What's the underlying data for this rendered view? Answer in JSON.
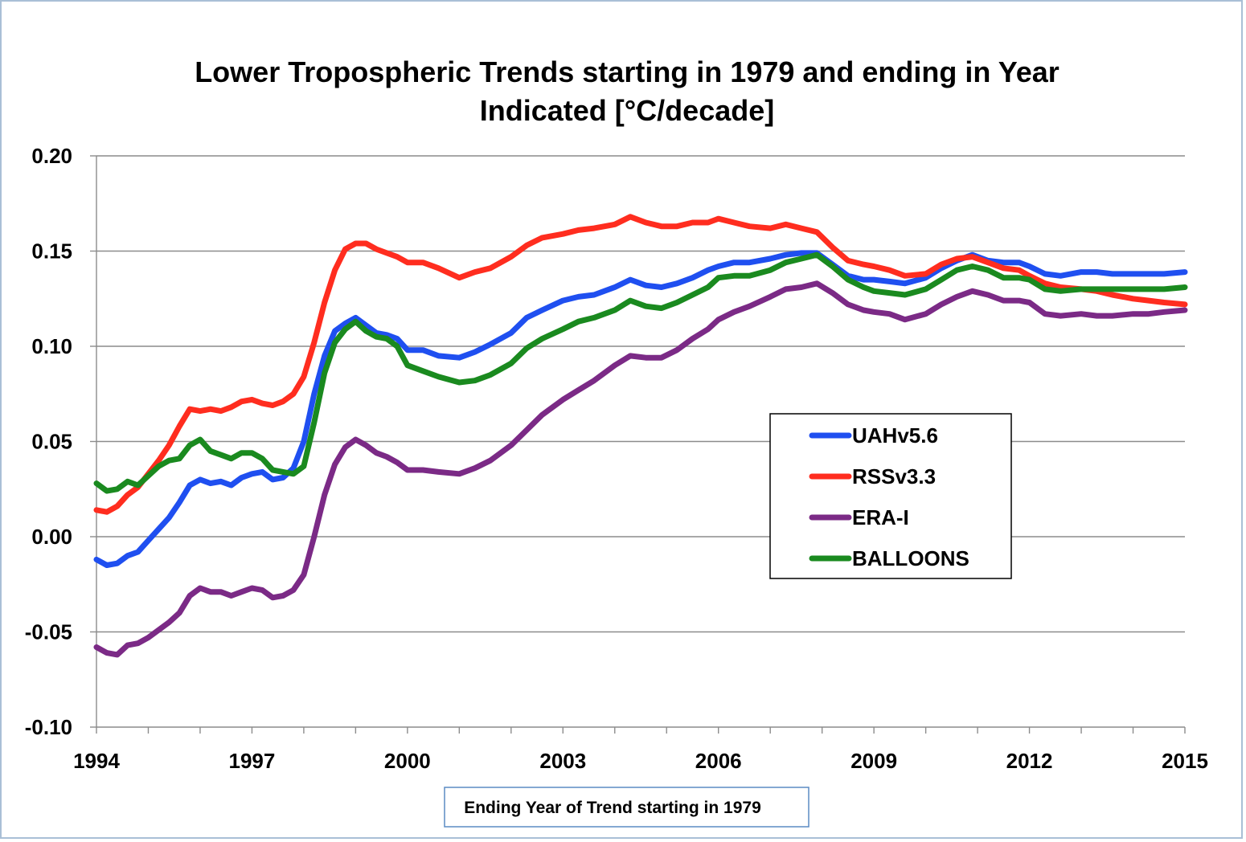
{
  "chart_data": {
    "type": "line",
    "title_lines": [
      "Lower Tropospheric Trends starting in 1979 and ending in Year",
      "Indicated [°C/decade]"
    ],
    "xlabel": "Ending Year of Trend starting in 1979",
    "ylabel": "",
    "xlim": [
      1994,
      2015
    ],
    "ylim": [
      -0.1,
      0.2
    ],
    "xticks": [
      1994,
      1997,
      2000,
      2003,
      2006,
      2009,
      2012,
      2015
    ],
    "yticks": [
      -0.1,
      -0.05,
      0.0,
      0.05,
      0.1,
      0.15,
      0.2
    ],
    "ytick_labels": [
      "-0.10",
      "-0.05",
      "0.00",
      "0.05",
      "0.10",
      "0.15",
      "0.20"
    ],
    "grid": "horizontal",
    "legend_position": "center-right",
    "series": [
      {
        "name": "UAHv5.6",
        "color": "#1f4ff0",
        "x": [
          1994.0,
          1994.2,
          1994.4,
          1994.6,
          1994.8,
          1995.0,
          1995.2,
          1995.4,
          1995.6,
          1995.8,
          1996.0,
          1996.2,
          1996.4,
          1996.6,
          1996.8,
          1997.0,
          1997.2,
          1997.4,
          1997.6,
          1997.8,
          1998.0,
          1998.2,
          1998.4,
          1998.6,
          1998.8,
          1999.0,
          1999.2,
          1999.4,
          1999.6,
          1999.8,
          2000.0,
          2000.3,
          2000.6,
          2001.0,
          2001.3,
          2001.6,
          2002.0,
          2002.3,
          2002.6,
          2003.0,
          2003.3,
          2003.6,
          2004.0,
          2004.3,
          2004.6,
          2004.9,
          2005.2,
          2005.5,
          2005.8,
          2006.0,
          2006.3,
          2006.6,
          2007.0,
          2007.3,
          2007.6,
          2007.9,
          2008.2,
          2008.5,
          2008.8,
          2009.0,
          2009.3,
          2009.6,
          2010.0,
          2010.3,
          2010.6,
          2010.9,
          2011.2,
          2011.5,
          2011.8,
          2012.0,
          2012.3,
          2012.6,
          2013.0,
          2013.3,
          2013.6,
          2014.0,
          2014.3,
          2014.6,
          2015.0
        ],
        "values": [
          -0.012,
          -0.015,
          -0.014,
          -0.01,
          -0.008,
          -0.002,
          0.004,
          0.01,
          0.018,
          0.027,
          0.03,
          0.028,
          0.029,
          0.027,
          0.031,
          0.033,
          0.034,
          0.03,
          0.031,
          0.036,
          0.05,
          0.075,
          0.095,
          0.108,
          0.112,
          0.115,
          0.111,
          0.107,
          0.106,
          0.104,
          0.098,
          0.098,
          0.095,
          0.094,
          0.097,
          0.101,
          0.107,
          0.115,
          0.119,
          0.124,
          0.126,
          0.127,
          0.131,
          0.135,
          0.132,
          0.131,
          0.133,
          0.136,
          0.14,
          0.142,
          0.144,
          0.144,
          0.146,
          0.148,
          0.149,
          0.149,
          0.143,
          0.137,
          0.135,
          0.135,
          0.134,
          0.133,
          0.136,
          0.141,
          0.145,
          0.148,
          0.145,
          0.144,
          0.144,
          0.142,
          0.138,
          0.137,
          0.139,
          0.139,
          0.138,
          0.138,
          0.138,
          0.138,
          0.139
        ]
      },
      {
        "name": "RSSv3.3",
        "color": "#ff2d1f",
        "x": [
          1994.0,
          1994.2,
          1994.4,
          1994.6,
          1994.8,
          1995.0,
          1995.2,
          1995.4,
          1995.6,
          1995.8,
          1996.0,
          1996.2,
          1996.4,
          1996.6,
          1996.8,
          1997.0,
          1997.2,
          1997.4,
          1997.6,
          1997.8,
          1998.0,
          1998.2,
          1998.4,
          1998.6,
          1998.8,
          1999.0,
          1999.2,
          1999.4,
          1999.6,
          1999.8,
          2000.0,
          2000.3,
          2000.6,
          2001.0,
          2001.3,
          2001.6,
          2002.0,
          2002.3,
          2002.6,
          2003.0,
          2003.3,
          2003.6,
          2004.0,
          2004.3,
          2004.6,
          2004.9,
          2005.2,
          2005.5,
          2005.8,
          2006.0,
          2006.3,
          2006.6,
          2007.0,
          2007.3,
          2007.6,
          2007.9,
          2008.2,
          2008.5,
          2008.8,
          2009.0,
          2009.3,
          2009.6,
          2010.0,
          2010.3,
          2010.6,
          2010.9,
          2011.2,
          2011.5,
          2011.8,
          2012.0,
          2012.3,
          2012.6,
          2013.0,
          2013.3,
          2013.6,
          2014.0,
          2014.3,
          2014.6,
          2015.0
        ],
        "values": [
          0.014,
          0.013,
          0.016,
          0.022,
          0.026,
          0.033,
          0.04,
          0.048,
          0.058,
          0.067,
          0.066,
          0.067,
          0.066,
          0.068,
          0.071,
          0.072,
          0.07,
          0.069,
          0.071,
          0.075,
          0.084,
          0.102,
          0.123,
          0.14,
          0.151,
          0.154,
          0.154,
          0.151,
          0.149,
          0.147,
          0.144,
          0.144,
          0.141,
          0.136,
          0.139,
          0.141,
          0.147,
          0.153,
          0.157,
          0.159,
          0.161,
          0.162,
          0.164,
          0.168,
          0.165,
          0.163,
          0.163,
          0.165,
          0.165,
          0.167,
          0.165,
          0.163,
          0.162,
          0.164,
          0.162,
          0.16,
          0.152,
          0.145,
          0.143,
          0.142,
          0.14,
          0.137,
          0.138,
          0.143,
          0.146,
          0.147,
          0.144,
          0.141,
          0.14,
          0.137,
          0.133,
          0.131,
          0.13,
          0.129,
          0.127,
          0.125,
          0.124,
          0.123,
          0.122
        ]
      },
      {
        "name": "ERA-I",
        "color": "#7b2a86",
        "x": [
          1994.0,
          1994.2,
          1994.4,
          1994.6,
          1994.8,
          1995.0,
          1995.2,
          1995.4,
          1995.6,
          1995.8,
          1996.0,
          1996.2,
          1996.4,
          1996.6,
          1996.8,
          1997.0,
          1997.2,
          1997.4,
          1997.6,
          1997.8,
          1998.0,
          1998.2,
          1998.4,
          1998.6,
          1998.8,
          1999.0,
          1999.2,
          1999.4,
          1999.6,
          1999.8,
          2000.0,
          2000.3,
          2000.6,
          2001.0,
          2001.3,
          2001.6,
          2002.0,
          2002.3,
          2002.6,
          2003.0,
          2003.3,
          2003.6,
          2004.0,
          2004.3,
          2004.6,
          2004.9,
          2005.2,
          2005.5,
          2005.8,
          2006.0,
          2006.3,
          2006.6,
          2007.0,
          2007.3,
          2007.6,
          2007.9,
          2008.2,
          2008.5,
          2008.8,
          2009.0,
          2009.3,
          2009.6,
          2010.0,
          2010.3,
          2010.6,
          2010.9,
          2011.2,
          2011.5,
          2011.8,
          2012.0,
          2012.3,
          2012.6,
          2013.0,
          2013.3,
          2013.6,
          2014.0,
          2014.3,
          2014.6,
          2015.0
        ],
        "values": [
          -0.058,
          -0.061,
          -0.062,
          -0.057,
          -0.056,
          -0.053,
          -0.049,
          -0.045,
          -0.04,
          -0.031,
          -0.027,
          -0.029,
          -0.029,
          -0.031,
          -0.029,
          -0.027,
          -0.028,
          -0.032,
          -0.031,
          -0.028,
          -0.02,
          0.0,
          0.022,
          0.038,
          0.047,
          0.051,
          0.048,
          0.044,
          0.042,
          0.039,
          0.035,
          0.035,
          0.034,
          0.033,
          0.036,
          0.04,
          0.048,
          0.056,
          0.064,
          0.072,
          0.077,
          0.082,
          0.09,
          0.095,
          0.094,
          0.094,
          0.098,
          0.104,
          0.109,
          0.114,
          0.118,
          0.121,
          0.126,
          0.13,
          0.131,
          0.133,
          0.128,
          0.122,
          0.119,
          0.118,
          0.117,
          0.114,
          0.117,
          0.122,
          0.126,
          0.129,
          0.127,
          0.124,
          0.124,
          0.123,
          0.117,
          0.116,
          0.117,
          0.116,
          0.116,
          0.117,
          0.117,
          0.118,
          0.119
        ]
      },
      {
        "name": "BALLOONS",
        "color": "#1a8a1f",
        "x": [
          1994.0,
          1994.2,
          1994.4,
          1994.6,
          1994.8,
          1995.0,
          1995.2,
          1995.4,
          1995.6,
          1995.8,
          1996.0,
          1996.2,
          1996.4,
          1996.6,
          1996.8,
          1997.0,
          1997.2,
          1997.4,
          1997.6,
          1997.8,
          1998.0,
          1998.2,
          1998.4,
          1998.6,
          1998.8,
          1999.0,
          1999.2,
          1999.4,
          1999.6,
          1999.8,
          2000.0,
          2000.3,
          2000.6,
          2001.0,
          2001.3,
          2001.6,
          2002.0,
          2002.3,
          2002.6,
          2003.0,
          2003.3,
          2003.6,
          2004.0,
          2004.3,
          2004.6,
          2004.9,
          2005.2,
          2005.5,
          2005.8,
          2006.0,
          2006.3,
          2006.6,
          2007.0,
          2007.3,
          2007.6,
          2007.9,
          2008.2,
          2008.5,
          2008.8,
          2009.0,
          2009.3,
          2009.6,
          2010.0,
          2010.3,
          2010.6,
          2010.9,
          2011.2,
          2011.5,
          2011.8,
          2012.0,
          2012.3,
          2012.6,
          2013.0,
          2013.3,
          2013.6,
          2014.0,
          2014.3,
          2014.6,
          2015.0
        ],
        "values": [
          0.028,
          0.024,
          0.025,
          0.029,
          0.027,
          0.032,
          0.037,
          0.04,
          0.041,
          0.048,
          0.051,
          0.045,
          0.043,
          0.041,
          0.044,
          0.044,
          0.041,
          0.035,
          0.034,
          0.033,
          0.037,
          0.06,
          0.086,
          0.102,
          0.109,
          0.113,
          0.108,
          0.105,
          0.104,
          0.1,
          0.09,
          0.087,
          0.084,
          0.081,
          0.082,
          0.085,
          0.091,
          0.099,
          0.104,
          0.109,
          0.113,
          0.115,
          0.119,
          0.124,
          0.121,
          0.12,
          0.123,
          0.127,
          0.131,
          0.136,
          0.137,
          0.137,
          0.14,
          0.144,
          0.146,
          0.148,
          0.142,
          0.135,
          0.131,
          0.129,
          0.128,
          0.127,
          0.13,
          0.135,
          0.14,
          0.142,
          0.14,
          0.136,
          0.136,
          0.135,
          0.13,
          0.129,
          0.13,
          0.13,
          0.13,
          0.13,
          0.13,
          0.13,
          0.131
        ]
      }
    ]
  }
}
